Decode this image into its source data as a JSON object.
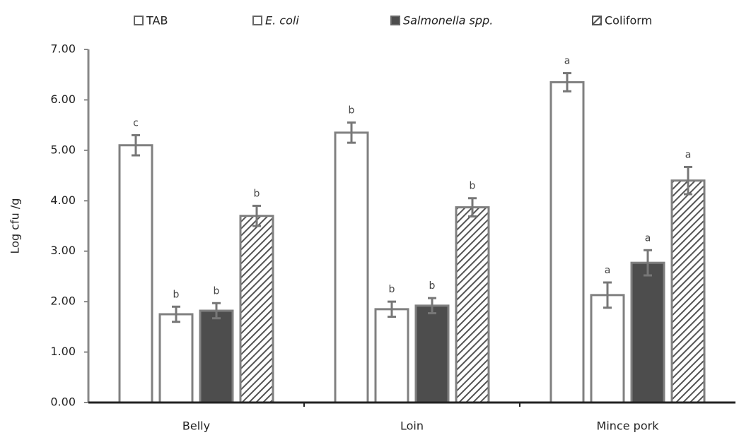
{
  "chart_data": {
    "type": "bar",
    "y_label": "Log cfu /g",
    "categories": [
      "Belly",
      "Loin",
      "Mince pork"
    ],
    "series": [
      {
        "name": "TAB",
        "color": "#ffffff",
        "edge_color": "#808080",
        "italic": false,
        "hatch": false,
        "values": [
          5.1,
          5.35,
          6.35
        ],
        "errors": [
          0.2,
          0.2,
          0.18
        ],
        "letters": [
          "c",
          "b",
          "a"
        ]
      },
      {
        "name": "E. coli",
        "color": "#ffffff",
        "edge_color": "#808080",
        "italic": true,
        "hatch": false,
        "values": [
          1.75,
          1.85,
          2.13
        ],
        "errors": [
          0.15,
          0.15,
          0.25
        ],
        "letters": [
          "b",
          "b",
          "a"
        ]
      },
      {
        "name": "Salmonella spp.",
        "color": "#4d4d4d",
        "edge_color": "#808080",
        "italic": true,
        "hatch": false,
        "values": [
          1.82,
          1.92,
          2.77
        ],
        "errors": [
          0.15,
          0.15,
          0.25
        ],
        "letters": [
          "b",
          "b",
          "a"
        ]
      },
      {
        "name": "Coliform",
        "color": "#555555",
        "edge_color": "#808080",
        "italic": false,
        "hatch": true,
        "values": [
          3.7,
          3.87,
          4.4
        ],
        "errors": [
          0.2,
          0.18,
          0.27
        ],
        "letters": [
          "b",
          "b",
          "a"
        ]
      }
    ],
    "ylim": [
      0,
      7
    ],
    "yticks": [
      {
        "value": 0,
        "label": "0.00"
      },
      {
        "value": 1,
        "label": "1.00"
      },
      {
        "value": 2,
        "label": "2.00"
      },
      {
        "value": 3,
        "label": "3.00"
      },
      {
        "value": 4,
        "label": "4.00"
      },
      {
        "value": 5,
        "label": "5.00"
      },
      {
        "value": 6,
        "label": "6.00"
      },
      {
        "value": 7,
        "label": "7.00"
      }
    ]
  }
}
